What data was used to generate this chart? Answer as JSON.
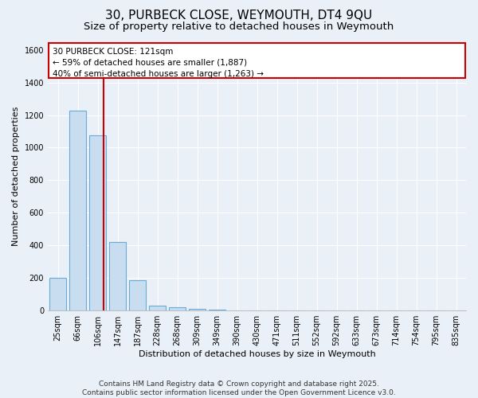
{
  "title": "30, PURBECK CLOSE, WEYMOUTH, DT4 9QU",
  "subtitle": "Size of property relative to detached houses in Weymouth",
  "xlabel": "Distribution of detached houses by size in Weymouth",
  "ylabel": "Number of detached properties",
  "categories": [
    "25sqm",
    "66sqm",
    "106sqm",
    "147sqm",
    "187sqm",
    "228sqm",
    "268sqm",
    "309sqm",
    "349sqm",
    "390sqm",
    "430sqm",
    "471sqm",
    "511sqm",
    "552sqm",
    "592sqm",
    "633sqm",
    "673sqm",
    "714sqm",
    "754sqm",
    "795sqm",
    "835sqm"
  ],
  "values": [
    200,
    1225,
    1075,
    420,
    185,
    30,
    20,
    10,
    4,
    2,
    1,
    1,
    0,
    0,
    0,
    0,
    0,
    0,
    0,
    0,
    0
  ],
  "bar_color": "#c9ddf0",
  "bar_edge_color": "#6aaad4",
  "vline_x_index": 2,
  "vline_color": "#cc0000",
  "annotation_text": "30 PURBECK CLOSE: 121sqm\n← 59% of detached houses are smaller (1,887)\n40% of semi-detached houses are larger (1,263) →",
  "annotation_box_edgecolor": "#cc0000",
  "ylim": [
    0,
    1650
  ],
  "yticks": [
    0,
    200,
    400,
    600,
    800,
    1000,
    1200,
    1400,
    1600
  ],
  "footnote": "Contains HM Land Registry data © Crown copyright and database right 2025.\nContains public sector information licensed under the Open Government Licence v3.0.",
  "bg_color": "#eaf0f8",
  "plot_bg_color": "#eaf0f8",
  "grid_color": "#ffffff",
  "title_fontsize": 11,
  "subtitle_fontsize": 9.5,
  "label_fontsize": 8,
  "tick_fontsize": 7,
  "annotation_fontsize": 7.5,
  "footnote_fontsize": 6.5
}
